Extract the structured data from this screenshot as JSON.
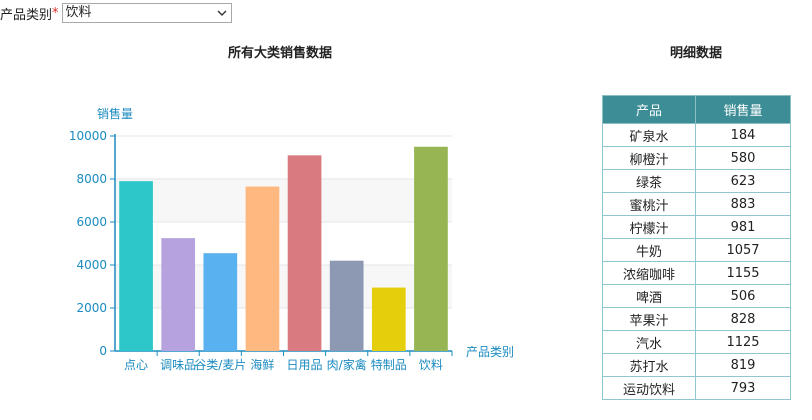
{
  "filter": {
    "label": "产品类别",
    "required_mark": "*",
    "selected": "饮料"
  },
  "chart": {
    "title": "所有大类销售数据"
  },
  "chart_data": {
    "type": "bar",
    "title": "所有大类销售数据",
    "ylabel": "销售量",
    "xlabel": "产品类别",
    "ylim": [
      0,
      10000
    ],
    "yticks": [
      0,
      2000,
      4000,
      6000,
      8000,
      10000
    ],
    "grid": true,
    "categories": [
      "点心",
      "调味品",
      "谷类/麦片",
      "海鲜",
      "日用品",
      "肉/家禽",
      "特制品",
      "饮料"
    ],
    "values": [
      7900,
      5250,
      4550,
      7650,
      9100,
      4200,
      2950,
      9500
    ],
    "colors": [
      "#2ec7c9",
      "#b6a2de",
      "#5ab1ef",
      "#ffb980",
      "#d87a80",
      "#8d98b3",
      "#e5cf0d",
      "#97b552"
    ]
  },
  "table": {
    "title": "明细数据",
    "headers": [
      "产品",
      "销售量"
    ],
    "rows": [
      [
        "矿泉水",
        "184"
      ],
      [
        "柳橙汁",
        "580"
      ],
      [
        "绿茶",
        "623"
      ],
      [
        "蜜桃汁",
        "883"
      ],
      [
        "柠檬汁",
        "981"
      ],
      [
        "牛奶",
        "1057"
      ],
      [
        "浓缩咖啡",
        "1155"
      ],
      [
        "啤酒",
        "506"
      ],
      [
        "苹果汁",
        "828"
      ],
      [
        "汽水",
        "1125"
      ],
      [
        "苏打水",
        "819"
      ],
      [
        "运动饮料",
        "793"
      ]
    ]
  },
  "colors": {
    "axis": "#1b8bc0",
    "table_header_bg": "#3c8d95",
    "table_border": "#8ec7cd"
  }
}
